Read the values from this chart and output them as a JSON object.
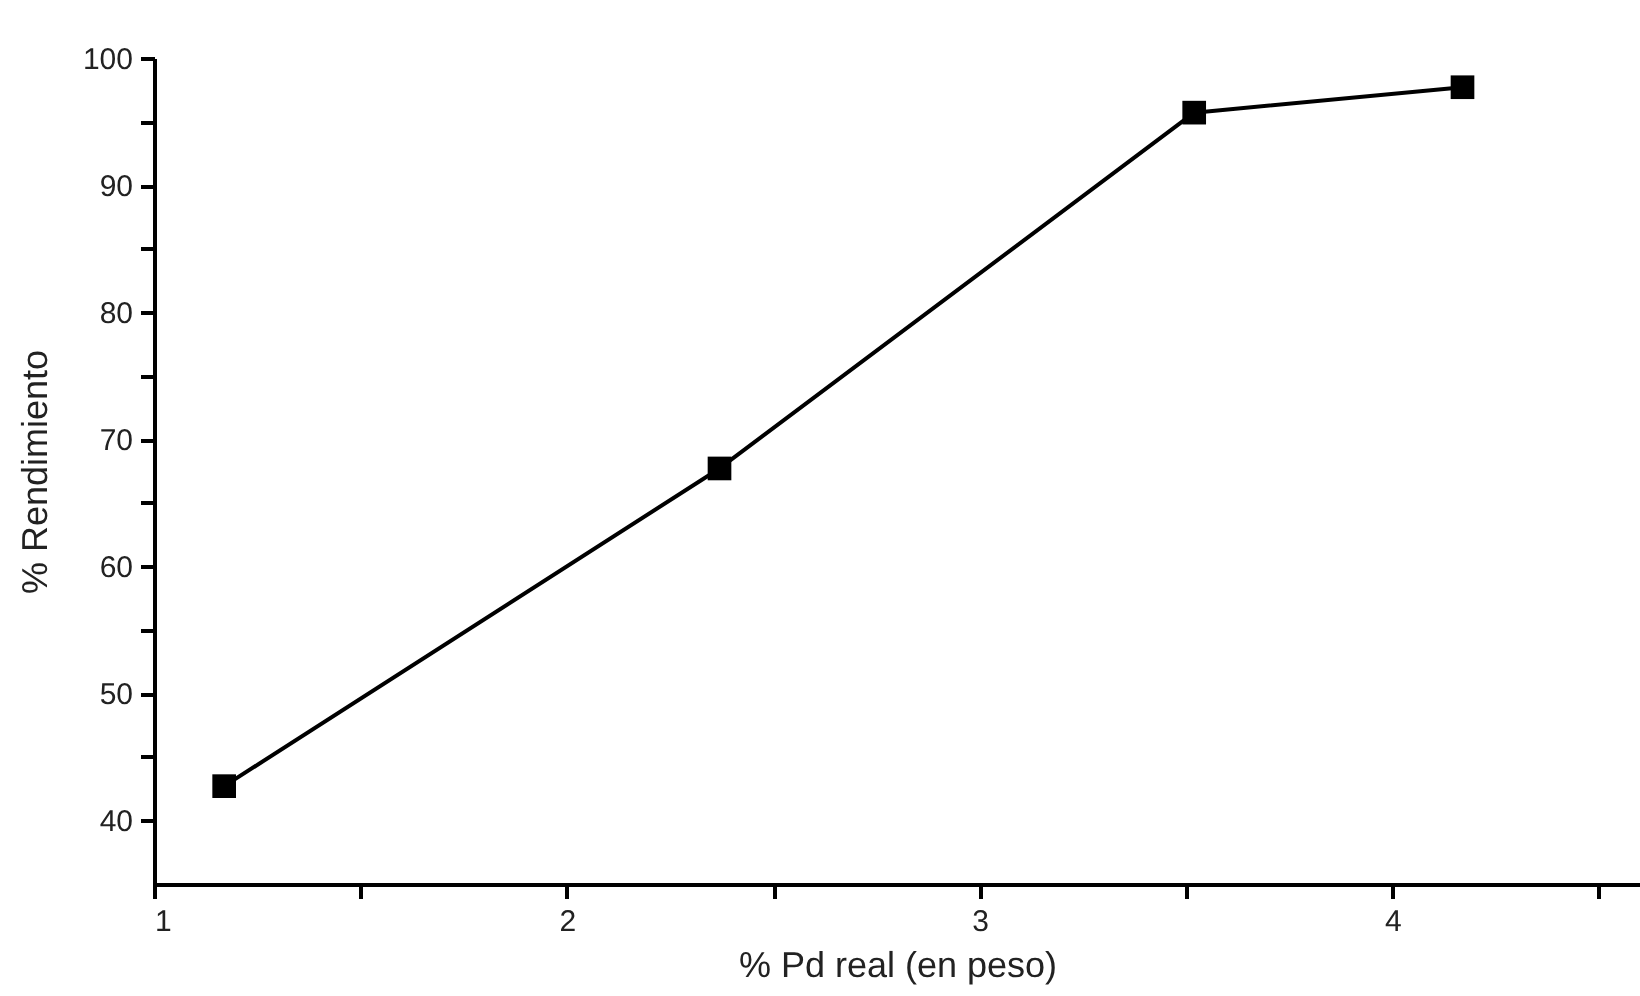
{
  "chart_data": {
    "type": "line",
    "xlabel": "% Pd real (en peso)",
    "ylabel": "% Rendimiento",
    "x": [
      1.17,
      2.37,
      3.52,
      4.17
    ],
    "series": [
      {
        "color": "#000000",
        "values": [
          42.7,
          67.7,
          95.7,
          97.7
        ]
      }
    ],
    "marker": "square",
    "line_style": "solid",
    "grid": false,
    "legend": false,
    "xlim": [
      1,
      4.6
    ],
    "xticks": [
      1,
      {
        "value": 1.5,
        "label": null
      },
      2,
      {
        "value": 2.5,
        "label": null
      },
      3,
      {
        "value": 3.5,
        "label": null
      },
      4,
      {
        "value": 4.5,
        "label": null
      }
    ],
    "ylim": [
      35,
      100
    ],
    "yticks": [
      40,
      {
        "value": 45,
        "label": null
      },
      50,
      {
        "value": 55,
        "label": null
      },
      60,
      {
        "value": 65,
        "label": null
      },
      70,
      {
        "value": 75,
        "label": null
      },
      80,
      {
        "value": 85,
        "label": null
      },
      90,
      {
        "value": 95,
        "label": null
      },
      100
    ]
  }
}
